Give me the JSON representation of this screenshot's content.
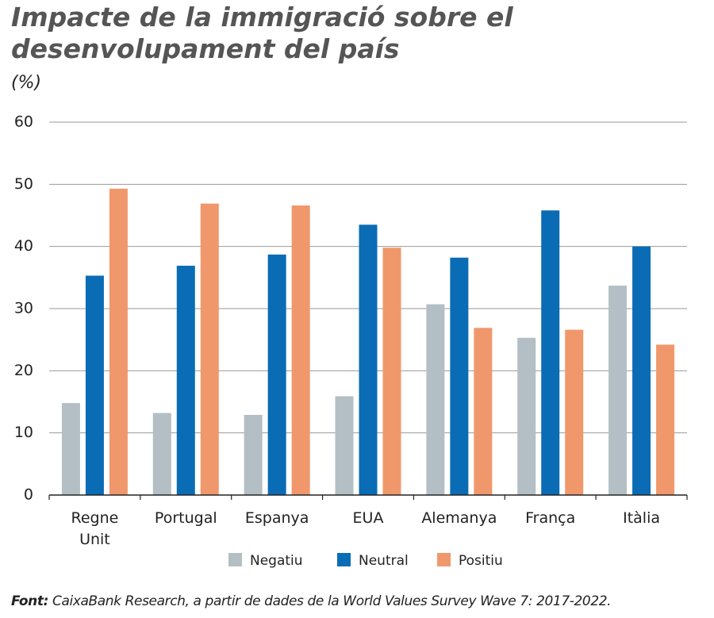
{
  "chart_data": {
    "type": "bar",
    "title": "Impacte de la immigració sobre el desenvolupament del país",
    "subtitle": "(%)",
    "categories": [
      "Regne Unit",
      "Portugal",
      "Espanya",
      "EUA",
      "Alemanya",
      "França",
      "Itàlia"
    ],
    "series": [
      {
        "name": "Negatiu",
        "color": "#b3bfc4",
        "values": [
          14.8,
          13.2,
          12.9,
          15.9,
          30.7,
          25.3,
          33.7
        ]
      },
      {
        "name": "Neutral",
        "color": "#0a6cb5",
        "values": [
          35.3,
          36.9,
          38.7,
          43.5,
          38.2,
          45.8,
          40.0
        ]
      },
      {
        "name": "Positiu",
        "color": "#f0986c",
        "values": [
          49.3,
          46.9,
          46.6,
          39.8,
          26.9,
          26.6,
          24.2
        ]
      }
    ],
    "ylim": [
      0,
      60
    ],
    "yticks": [
      0,
      10,
      20,
      30,
      40,
      50,
      60
    ],
    "grid": true,
    "source": {
      "label": "Font:",
      "text": "CaixaBank Research, a partir de dades de la World Values Survey Wave 7: 2017-2022."
    }
  }
}
